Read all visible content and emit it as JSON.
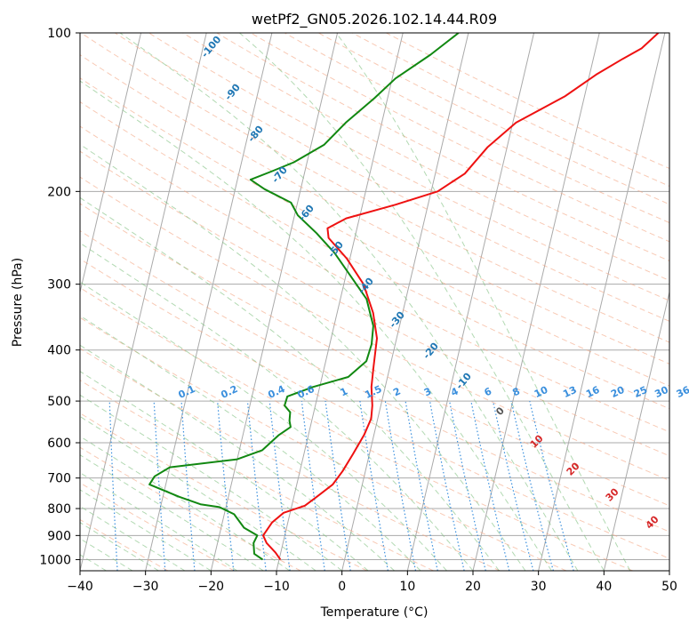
{
  "chart_data": {
    "type": "line",
    "subtype": "skew-t log-p diagram",
    "title": "wetPf2_GN05.2026.102.14.44.R09",
    "xlabel": "Temperature (°C)",
    "ylabel": "Pressure (hPa)",
    "xlim": [
      -40,
      50
    ],
    "ylim": [
      1050,
      100
    ],
    "y_scale": "log",
    "x_ticks": [
      -40,
      -30,
      -20,
      -10,
      0,
      10,
      20,
      30,
      40,
      50
    ],
    "y_ticks": [
      100,
      200,
      300,
      400,
      500,
      600,
      700,
      800,
      900,
      1000
    ],
    "grid": true,
    "colors": {
      "temperature": "#ee1111",
      "dewpoint": "#118811",
      "isotherm": "#aaaaaa",
      "dry_adiabat": "#f4a582",
      "moist_adiabat": "#7fbf7f",
      "mixing_ratio": "#3a8fdd",
      "dry_adiabat_label": "#1f77b4",
      "moist_adiabat_label": "#d62728"
    },
    "series": [
      {
        "role": "temperature",
        "points": [
          [
            -9.8,
            1000
          ],
          [
            -10.8,
            970
          ],
          [
            -12.5,
            930
          ],
          [
            -13.3,
            900
          ],
          [
            -12.4,
            850
          ],
          [
            -11.0,
            815
          ],
          [
            -8.0,
            790
          ],
          [
            -6.5,
            760
          ],
          [
            -4.5,
            720
          ],
          [
            -3.5,
            680
          ],
          [
            -2.5,
            630
          ],
          [
            -1.5,
            580
          ],
          [
            -1.0,
            540
          ],
          [
            -1.3,
            510
          ],
          [
            -2.1,
            470
          ],
          [
            -2.5,
            430
          ],
          [
            -3.0,
            380
          ],
          [
            -4.5,
            340
          ],
          [
            -7.0,
            300
          ],
          [
            -10.5,
            268
          ],
          [
            -14.0,
            245
          ],
          [
            -14.5,
            235
          ],
          [
            -12.0,
            225
          ],
          [
            -5.0,
            212
          ],
          [
            1.0,
            200
          ],
          [
            4.5,
            185
          ],
          [
            7.0,
            165
          ],
          [
            10.5,
            148
          ],
          [
            17.0,
            132
          ],
          [
            21.0,
            120
          ],
          [
            24.5,
            112
          ],
          [
            27.0,
            107
          ],
          [
            29.0,
            100
          ]
        ]
      },
      {
        "role": "dewpoint",
        "points": [
          [
            -12.5,
            1000
          ],
          [
            -14.0,
            975
          ],
          [
            -14.5,
            930
          ],
          [
            -14.2,
            900
          ],
          [
            -16.5,
            870
          ],
          [
            -18.5,
            820
          ],
          [
            -21.0,
            795
          ],
          [
            -24.0,
            785
          ],
          [
            -27.5,
            760
          ],
          [
            -32.5,
            720
          ],
          [
            -32.0,
            695
          ],
          [
            -30.0,
            668
          ],
          [
            -20.0,
            645
          ],
          [
            -16.5,
            620
          ],
          [
            -14.5,
            580
          ],
          [
            -13.0,
            560
          ],
          [
            -13.4,
            545
          ],
          [
            -13.6,
            525
          ],
          [
            -14.7,
            510
          ],
          [
            -14.6,
            490
          ],
          [
            -11.0,
            470
          ],
          [
            -6.0,
            450
          ],
          [
            -3.8,
            420
          ],
          [
            -3.6,
            390
          ],
          [
            -4.0,
            360
          ],
          [
            -6.0,
            320
          ],
          [
            -9.2,
            290
          ],
          [
            -12.5,
            262
          ],
          [
            -16.0,
            240
          ],
          [
            -19.5,
            222
          ],
          [
            -21.0,
            210
          ],
          [
            -25.5,
            198
          ],
          [
            -28.0,
            190
          ],
          [
            -25.0,
            183
          ],
          [
            -22.0,
            176
          ],
          [
            -18.0,
            163
          ],
          [
            -15.5,
            148
          ],
          [
            -12.0,
            133
          ],
          [
            -9.5,
            122
          ],
          [
            -5.0,
            110
          ],
          [
            -1.5,
            100
          ]
        ]
      }
    ],
    "dry_adiabat_labels": [
      "-100",
      "-90",
      "-80",
      "-70",
      "-60",
      "-50",
      "-40",
      "-30",
      "-20",
      "-10"
    ],
    "moist_adiabat_labels": [
      "0",
      "10",
      "20",
      "30",
      "40"
    ],
    "mixing_ratio_labels": [
      "0.1",
      "0.2",
      "0.4",
      "0.6",
      "1",
      "1.5",
      "2",
      "3",
      "4",
      "6",
      "8",
      "10",
      "13",
      "16",
      "20",
      "25",
      "30",
      "36"
    ]
  }
}
